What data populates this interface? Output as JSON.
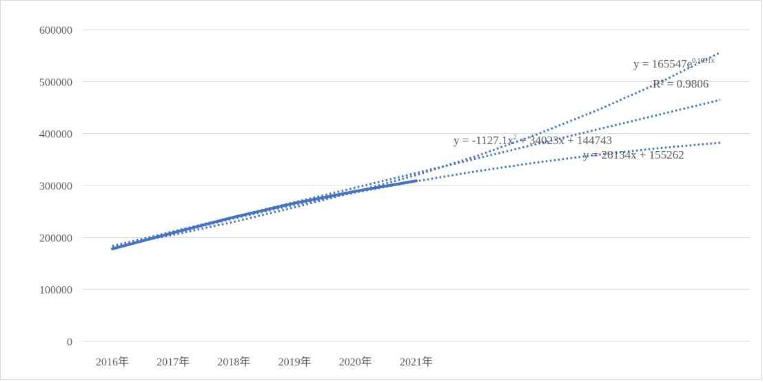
{
  "chart_data": {
    "type": "line",
    "categories": [
      "2016年",
      "2017年",
      "2018年",
      "2019年",
      "2020年",
      "2021年"
    ],
    "series": [
      {
        "values": [
          178000,
          209000,
          239000,
          266000,
          289000,
          309000
        ]
      }
    ],
    "trendlines": [
      {
        "type": "exponential",
        "equation": "y = 165547e",
        "exponent": "0.1091x",
        "r2_label": "R² = 0.9806",
        "values": [
          183000,
          205000,
          230000,
          258000,
          288000,
          320000,
          357000,
          399000,
          446000,
          498000,
          556000
        ]
      },
      {
        "type": "polynomial",
        "equation_prefix": "y = -1127.1x",
        "equation_power": "2",
        "equation_suffix": " + 34023x + 144743",
        "values": [
          177640,
          208280,
          236660,
          262770,
          286630,
          308220,
          327550,
          344630,
          359440,
          372000,
          382290
        ]
      },
      {
        "type": "linear",
        "equation": "y = 28134x + 155262",
        "values": [
          183400,
          211530,
          239660,
          267800,
          295930,
          324070,
          352200,
          380340,
          408470,
          436600,
          464740
        ]
      }
    ],
    "y_ticks": [
      "0",
      "100000",
      "200000",
      "300000",
      "400000",
      "500000",
      "600000"
    ],
    "ylim": [
      0,
      600000
    ],
    "grid": true,
    "series_color": "#4472c4",
    "grid_color": "#d9d9d9",
    "text_color": "#595959"
  }
}
